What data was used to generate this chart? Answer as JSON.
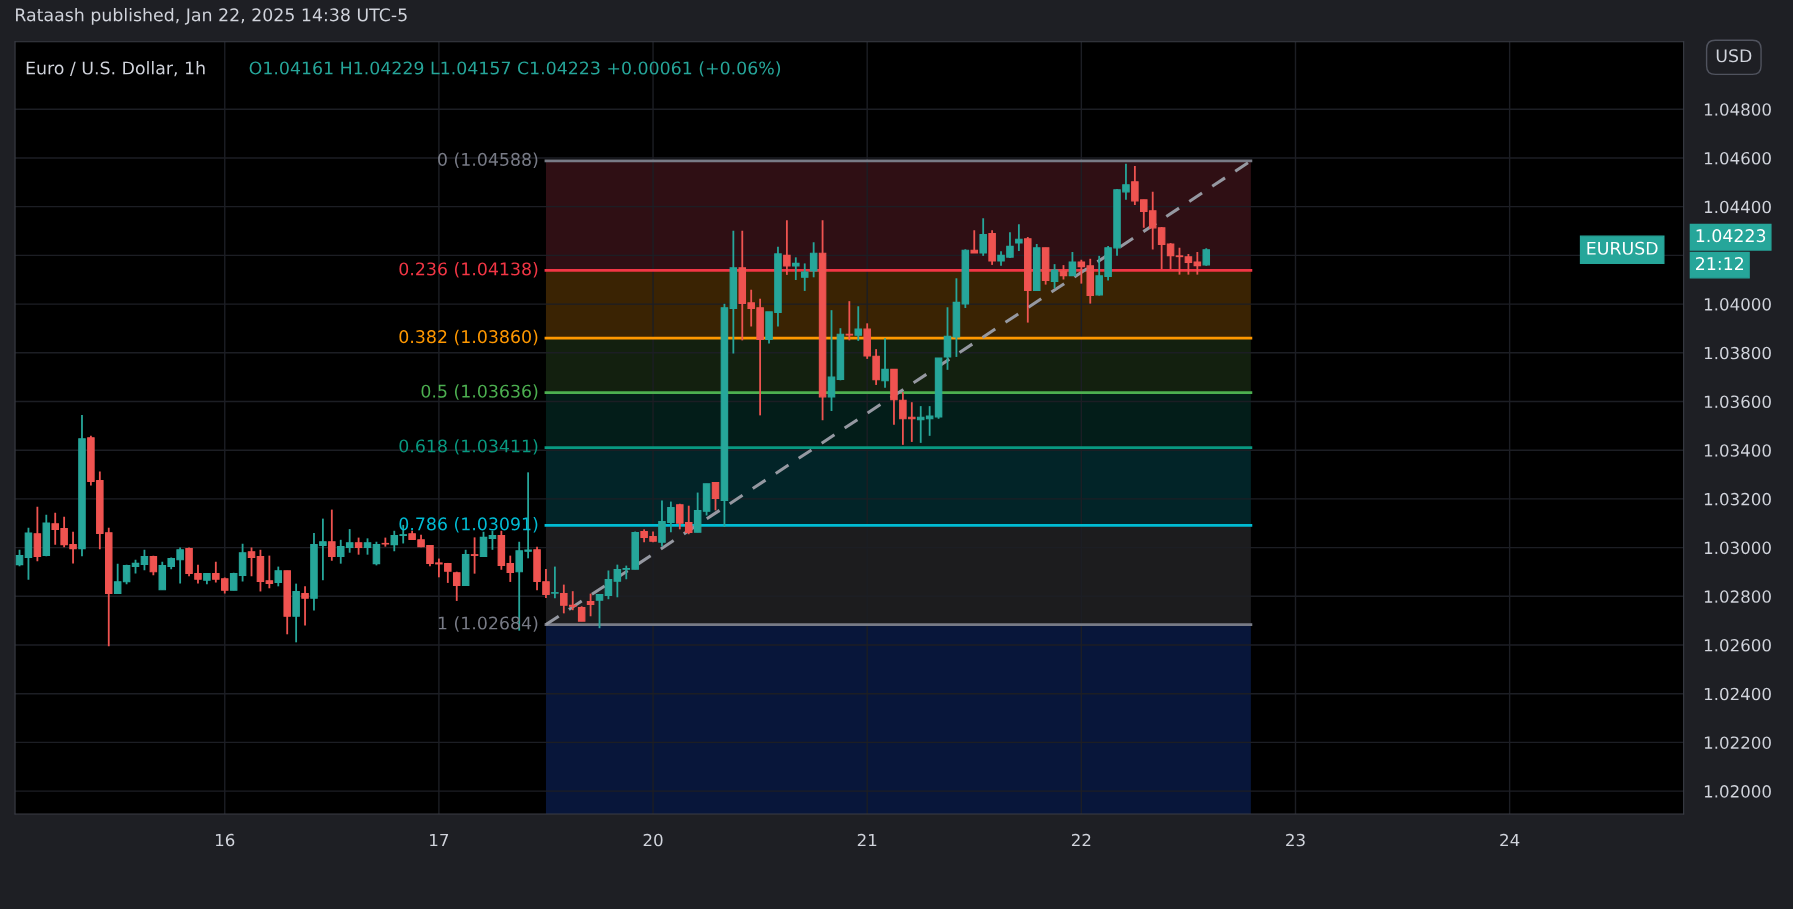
{
  "chart_data": {
    "type": "candlestick",
    "title": "Euro / U.S. Dollar, 1h",
    "subtitle": "O1.04161 H1.04229 L1.04157 C1.04223 +0.00061 (+0.06%)",
    "annotations": [
      "Rataash published, Jan 22, 2025 14:38 UTC-5",
      "USD",
      "EURUSD",
      "1.04223",
      "21:12"
    ],
    "categories": [
      null,
      null,
      null,
      null,
      null,
      null,
      null,
      null,
      null,
      null,
      null,
      null,
      null,
      null,
      null,
      null,
      null,
      null,
      null,
      null,
      null,
      null,
      null,
      "16",
      null,
      null,
      null,
      null,
      null,
      null,
      null,
      null,
      null,
      null,
      null,
      null,
      null,
      null,
      null,
      null,
      null,
      null,
      null,
      null,
      null,
      null,
      null,
      "17",
      null,
      null,
      null,
      null,
      null,
      null,
      null,
      null,
      null,
      null,
      null,
      null,
      null,
      null,
      null,
      null,
      null,
      null,
      null,
      null,
      null,
      null,
      null,
      "20",
      null,
      null,
      null,
      null,
      null,
      null,
      null,
      null,
      null,
      null,
      null,
      null,
      null,
      null,
      null,
      null,
      null,
      null,
      null,
      null,
      null,
      null,
      null,
      "21",
      null,
      null,
      null,
      null,
      null,
      null,
      null,
      null,
      null,
      null,
      null,
      null,
      null,
      null,
      null,
      null,
      null,
      null,
      null,
      null,
      null,
      null,
      null,
      "22",
      null,
      null,
      null,
      null,
      null,
      null,
      null,
      null,
      null,
      null,
      null,
      null,
      null,
      null,
      null,
      null,
      null,
      null,
      null,
      null,
      null,
      null,
      null,
      "23",
      null,
      null,
      null,
      null,
      null,
      null,
      null,
      null,
      null,
      null,
      null,
      null,
      null,
      null,
      null,
      null,
      null,
      null,
      null,
      null,
      null,
      null,
      null,
      "24",
      null,
      null,
      null,
      null,
      null,
      null,
      null,
      null,
      null,
      null,
      null,
      null,
      null,
      null,
      null,
      null,
      null,
      null,
      null
    ],
    "ohlc": [
      [
        1.0293,
        1.02991,
        1.02923,
        1.02967
      ],
      [
        1.0296,
        1.03082,
        1.02868,
        1.0306
      ],
      [
        1.03057,
        1.03168,
        1.02944,
        1.02964
      ],
      [
        1.02968,
        1.03135,
        1.02964,
        1.03101
      ],
      [
        1.03098,
        1.03143,
        1.03012,
        1.03075
      ],
      [
        1.03078,
        1.03127,
        1.03001,
        1.03012
      ],
      [
        1.03012,
        1.03065,
        1.02935,
        1.02996
      ],
      [
        1.02996,
        1.03545,
        1.02964,
        1.03447
      ],
      [
        1.03451,
        1.03459,
        1.03255,
        1.03272
      ],
      [
        1.03275,
        1.03312,
        1.02993,
        1.03058
      ],
      [
        1.03061,
        1.03082,
        1.02595,
        1.02812
      ],
      [
        1.02812,
        1.02934,
        1.02812,
        1.0286
      ],
      [
        1.0286,
        1.0293,
        1.02849,
        1.02926
      ],
      [
        1.02923,
        1.0295,
        1.02894,
        1.02935
      ],
      [
        1.02931,
        1.02991,
        1.02907,
        1.02963
      ],
      [
        1.02963,
        1.02967,
        1.02886,
        1.02901
      ],
      [
        1.02827,
        1.02942,
        1.02827,
        1.02926
      ],
      [
        1.02923,
        1.02959,
        1.02911,
        1.02955
      ],
      [
        1.0295,
        1.03,
        1.02853,
        1.02991
      ],
      [
        1.02996,
        1.03,
        1.02882,
        1.02894
      ],
      [
        1.02893,
        1.0293,
        1.02853,
        1.0287
      ],
      [
        1.02866,
        1.02893,
        1.02849,
        1.02893
      ],
      [
        1.02893,
        1.02942,
        1.02857,
        1.0287
      ],
      [
        1.02872,
        1.02877,
        1.02812,
        1.02825
      ],
      [
        1.02825,
        1.02897,
        1.02825,
        1.02893
      ],
      [
        1.02886,
        1.03016,
        1.02861,
        1.02979
      ],
      [
        1.02983,
        1.03,
        1.02882,
        1.0296
      ],
      [
        1.02963,
        1.02991,
        1.0282,
        1.02861
      ],
      [
        1.02864,
        1.02967,
        1.02833,
        1.02853
      ],
      [
        1.02857,
        1.02922,
        1.02841,
        1.02905
      ],
      [
        1.02905,
        1.02905,
        1.02644,
        1.02718
      ],
      [
        1.02718,
        1.02852,
        1.02611,
        1.02819
      ],
      [
        1.02811,
        1.02841,
        1.0268,
        1.02792
      ],
      [
        1.02792,
        1.0306,
        1.02742,
        1.03012
      ],
      [
        1.03009,
        1.03119,
        1.02866,
        1.03024
      ],
      [
        1.03024,
        1.03156,
        1.02946,
        1.02964
      ],
      [
        1.02964,
        1.03032,
        1.02934,
        1.03004
      ],
      [
        1.03001,
        1.03076,
        1.02979,
        1.0302
      ],
      [
        1.0302,
        1.03041,
        1.02971,
        1.03001
      ],
      [
        1.03001,
        1.03038,
        1.02971,
        1.0302
      ],
      [
        1.02934,
        1.03024,
        1.02927,
        1.03012
      ],
      [
        1.03017,
        1.03041,
        1.03004,
        1.03015
      ],
      [
        1.03012,
        1.03069,
        1.02985,
        1.03049
      ],
      [
        1.0305,
        1.03093,
        1.03017,
        1.03053
      ],
      [
        1.03057,
        1.03069,
        1.03034,
        1.03034
      ],
      [
        1.03032,
        1.03053,
        1.03001,
        1.03004
      ],
      [
        1.03008,
        1.03011,
        1.02923,
        1.02935
      ],
      [
        1.02937,
        1.02955,
        1.02878,
        1.02933
      ],
      [
        1.02934,
        1.02937,
        1.02855,
        1.02903
      ],
      [
        1.02897,
        1.02901,
        1.02781,
        1.02845
      ],
      [
        1.02845,
        1.02991,
        1.02845,
        1.02971
      ],
      [
        1.02971,
        1.03042,
        1.02893,
        1.02968
      ],
      [
        1.02964,
        1.03065,
        1.02964,
        1.03042
      ],
      [
        1.03038,
        1.03069,
        1.02991,
        1.03049
      ],
      [
        1.03049,
        1.03069,
        1.02909,
        1.02927
      ],
      [
        1.02934,
        1.02967,
        1.02859,
        1.02898
      ],
      [
        1.02901,
        1.03024,
        1.02659,
        1.02987
      ],
      [
        1.02985,
        1.03309,
        1.02956,
        1.0299
      ],
      [
        1.02991,
        1.03004,
        1.02825,
        1.02861
      ],
      [
        1.0286,
        1.02912,
        1.02793,
        1.02808
      ],
      [
        1.02813,
        1.02922,
        1.02792,
        1.02815
      ],
      [
        1.02811,
        1.02848,
        1.0273,
        1.02763
      ],
      [
        1.02763,
        1.02821,
        1.02743,
        1.02759
      ],
      [
        1.02754,
        1.02759,
        1.02698,
        1.02698
      ],
      [
        1.02778,
        1.02811,
        1.02718,
        1.02767
      ],
      [
        1.02784,
        1.02807,
        1.02669,
        1.02807
      ],
      [
        1.02804,
        1.02906,
        1.02788,
        1.02869
      ],
      [
        1.02862,
        1.0293,
        1.02796,
        1.0291
      ],
      [
        1.02911,
        1.02926,
        1.0287,
        1.02914
      ],
      [
        1.02911,
        1.03066,
        1.02911,
        1.03062
      ],
      [
        1.03066,
        1.03075,
        1.03022,
        1.03042
      ],
      [
        1.03045,
        1.03066,
        1.03022,
        1.03026
      ],
      [
        1.03022,
        1.03193,
        1.03005,
        1.03107
      ],
      [
        1.03103,
        1.03189,
        1.03063,
        1.03164
      ],
      [
        1.03176,
        1.0318,
        1.03075,
        1.031
      ],
      [
        1.03103,
        1.03172,
        1.03055,
        1.03062
      ],
      [
        1.03063,
        1.03226,
        1.03063,
        1.03152
      ],
      [
        1.03149,
        1.03262,
        1.03132,
        1.03262
      ],
      [
        1.03267,
        1.03267,
        1.03153,
        1.03202
      ],
      [
        1.03194,
        1.04001,
        1.03085,
        1.03985
      ],
      [
        1.03982,
        1.04301,
        1.03797,
        1.04149
      ],
      [
        1.04149,
        1.04301,
        1.03851,
        1.04003
      ],
      [
        1.04005,
        1.04059,
        1.03908,
        1.03982
      ],
      [
        1.03985,
        1.04022,
        1.03543,
        1.03855
      ],
      [
        1.03855,
        1.03968,
        1.03838,
        1.03968
      ],
      [
        1.03966,
        1.04235,
        1.03908,
        1.04206
      ],
      [
        1.042,
        1.04344,
        1.0412,
        1.04157
      ],
      [
        1.04157,
        1.04192,
        1.04099,
        1.04167
      ],
      [
        1.0411,
        1.04167,
        1.04054,
        1.04132
      ],
      [
        1.04136,
        1.04254,
        1.0411,
        1.04209
      ],
      [
        1.04209,
        1.04344,
        1.03523,
        1.03619
      ],
      [
        1.03619,
        1.03975,
        1.03561,
        1.037
      ],
      [
        1.03691,
        1.03901,
        1.03687,
        1.03876
      ],
      [
        1.03876,
        1.04012,
        1.03851,
        1.03873
      ],
      [
        1.03872,
        1.03991,
        1.03849,
        1.03897
      ],
      [
        1.03897,
        1.03921,
        1.03775,
        1.03787
      ],
      [
        1.03786,
        1.03815,
        1.03668,
        1.03689
      ],
      [
        1.03685,
        1.0386,
        1.03656,
        1.03732
      ],
      [
        1.03732,
        1.03732,
        1.03504,
        1.03607
      ],
      [
        1.03605,
        1.03638,
        1.03422,
        1.03529
      ],
      [
        1.03535,
        1.03597,
        1.03434,
        1.03529
      ],
      [
        1.03525,
        1.03581,
        1.0343,
        1.03535
      ],
      [
        1.03529,
        1.03581,
        1.03459,
        1.0354
      ],
      [
        1.03537,
        1.03778,
        1.03529,
        1.03778
      ],
      [
        1.03783,
        1.03987,
        1.0373,
        1.03868
      ],
      [
        1.03865,
        1.04106,
        1.03783,
        1.04007
      ],
      [
        1.04001,
        1.04225,
        1.03984,
        1.04221
      ],
      [
        1.04221,
        1.04303,
        1.0421,
        1.0421
      ],
      [
        1.0421,
        1.04352,
        1.04198,
        1.04286
      ],
      [
        1.0429,
        1.04303,
        1.04161,
        1.04177
      ],
      [
        1.04177,
        1.04217,
        1.04157,
        1.042
      ],
      [
        1.04193,
        1.04295,
        1.04189,
        1.04237
      ],
      [
        1.04251,
        1.04328,
        1.04218,
        1.04266
      ],
      [
        1.04268,
        1.04275,
        1.03924,
        1.04056
      ],
      [
        1.04056,
        1.04247,
        1.04056,
        1.04231
      ],
      [
        1.04231,
        1.04231,
        1.0408,
        1.04097
      ],
      [
        1.04093,
        1.04164,
        1.04064,
        1.0414
      ],
      [
        1.04136,
        1.0416,
        1.04101,
        1.04117
      ],
      [
        1.04117,
        1.04214,
        1.04117,
        1.04173
      ],
      [
        1.04173,
        1.04182,
        1.04084,
        1.04154
      ],
      [
        1.04157,
        1.04186,
        1.04002,
        1.04035
      ],
      [
        1.04038,
        1.04198,
        1.04035,
        1.04116
      ],
      [
        1.04113,
        1.04239,
        1.04097,
        1.04231
      ],
      [
        1.04231,
        1.04473,
        1.04198,
        1.04469
      ],
      [
        1.04461,
        1.04576,
        1.04428,
        1.0449
      ],
      [
        1.04502,
        1.04567,
        1.04407,
        1.04424
      ],
      [
        1.04428,
        1.04428,
        1.04313,
        1.0438
      ],
      [
        1.04383,
        1.04461,
        1.04224,
        1.04313
      ],
      [
        1.04313,
        1.04317,
        1.04143,
        1.04245
      ],
      [
        1.04247,
        1.04251,
        1.04143,
        1.04199
      ],
      [
        1.04198,
        1.04231,
        1.04121,
        1.04195
      ],
      [
        1.04194,
        1.04206,
        1.04121,
        1.04171
      ],
      [
        1.04173,
        1.04214,
        1.04121,
        1.04158
      ],
      [
        1.04161,
        1.04229,
        1.04157,
        1.04223
      ],
      null,
      null,
      null,
      null,
      null,
      null,
      null,
      null,
      null,
      null,
      null,
      null,
      null,
      null,
      null,
      null,
      null,
      null,
      null,
      null,
      null,
      null,
      null,
      null,
      null,
      null,
      null,
      null,
      null,
      null,
      null,
      null,
      null,
      null,
      null,
      null,
      null,
      null,
      null,
      null,
      null,
      null,
      null,
      null,
      null,
      null,
      null,
      null,
      null,
      null,
      null,
      null,
      null
    ],
    "colors": [
      "#26a69a",
      "#26a69a",
      "#ef5350",
      "#26a69a",
      "#ef5350",
      "#ef5350",
      "#ef5350",
      "#26a69a",
      "#ef5350",
      "#ef5350",
      "#ef5350",
      "#26a69a",
      "#26a69a",
      "#26a69a",
      "#26a69a",
      "#ef5350",
      "#26a69a",
      "#26a69a",
      "#26a69a",
      "#ef5350",
      "#ef5350",
      "#26a69a",
      "#ef5350",
      "#ef5350",
      "#26a69a",
      "#26a69a",
      "#ef5350",
      "#ef5350",
      "#ef5350",
      "#26a69a",
      "#ef5350",
      "#26a69a",
      "#ef5350",
      "#26a69a",
      "#26a69a",
      "#ef5350",
      "#26a69a",
      "#26a69a",
      "#ef5350",
      "#26a69a",
      "#26a69a",
      "#ef5350",
      "#26a69a",
      "#26a69a",
      "#ef5350",
      "#ef5350",
      "#ef5350",
      "#ef5350",
      "#ef5350",
      "#ef5350",
      "#26a69a",
      "#ef5350",
      "#26a69a",
      "#26a69a",
      "#ef5350",
      "#ef5350",
      "#26a69a",
      "#26a69a",
      "#ef5350",
      "#ef5350",
      "#26a69a",
      "#ef5350",
      "#ef5350",
      "#ef5350",
      "#ef5350",
      "#26a69a",
      "#26a69a",
      "#26a69a",
      "#26a69a",
      "#26a69a",
      "#ef5350",
      "#ef5350",
      "#26a69a",
      "#26a69a",
      "#ef5350",
      "#ef5350",
      "#26a69a",
      "#26a69a",
      "#ef5350",
      "#26a69a",
      "#26a69a",
      "#ef5350",
      "#ef5350",
      "#ef5350",
      "#26a69a",
      "#26a69a",
      "#ef5350",
      "#26a69a",
      "#26a69a",
      "#26a69a",
      "#ef5350",
      "#26a69a",
      "#26a69a",
      "#ef5350",
      "#26a69a",
      "#ef5350",
      "#ef5350",
      "#26a69a",
      "#ef5350",
      "#ef5350",
      "#ef5350",
      "#26a69a",
      "#26a69a",
      "#26a69a",
      "#26a69a",
      "#26a69a",
      "#26a69a",
      "#ef5350",
      "#26a69a",
      "#ef5350",
      "#26a69a",
      "#26a69a",
      "#26a69a",
      "#ef5350",
      "#26a69a",
      "#ef5350",
      "#26a69a",
      "#ef5350",
      "#26a69a",
      "#ef5350",
      "#ef5350",
      "#26a69a",
      "#26a69a",
      "#26a69a",
      "#26a69a",
      "#ef5350",
      "#ef5350",
      "#ef5350",
      "#ef5350",
      "#ef5350",
      "#ef5350",
      "#ef5350",
      "#ef5350",
      "#26a69a",
      null,
      null,
      null,
      null,
      null,
      null,
      null,
      null,
      null,
      null,
      null,
      null,
      null,
      null,
      null,
      null,
      null,
      null,
      null,
      null,
      null,
      null,
      null,
      null,
      null,
      null,
      null,
      null,
      null,
      null,
      null,
      null,
      null,
      null,
      null,
      null,
      null,
      null,
      null,
      null,
      null,
      null,
      null,
      null,
      null,
      null,
      null,
      null,
      null,
      null,
      null,
      null,
      null
    ],
    "series": [
      {
        "type": "line",
        "color": "#9598a1",
        "values": [
          null,
          null,
          null,
          null,
          null,
          null,
          null,
          null,
          null,
          null,
          null,
          null,
          null,
          null,
          null,
          null,
          null,
          null,
          null,
          null,
          null,
          null,
          null,
          null,
          null,
          null,
          null,
          null,
          null,
          null,
          null,
          null,
          null,
          null,
          null,
          null,
          null,
          null,
          null,
          null,
          null,
          null,
          null,
          null,
          null,
          null,
          null,
          null,
          null,
          null,
          null,
          null,
          null,
          null,
          null,
          null,
          null,
          null,
          null,
          1.02684,
          null,
          null,
          null,
          null,
          null,
          null,
          null,
          null,
          null,
          null,
          null,
          null,
          null,
          null,
          null,
          null,
          null,
          null,
          null,
          null,
          null,
          null,
          null,
          null,
          null,
          null,
          null,
          null,
          null,
          null,
          null,
          null,
          null,
          null,
          null,
          null,
          null,
          null,
          null,
          null,
          null,
          null,
          null,
          null,
          null,
          null,
          null,
          null,
          null,
          null,
          null,
          null,
          null,
          null,
          null,
          null,
          null,
          null,
          null,
          null,
          null,
          null,
          null,
          null,
          null,
          null,
          null,
          null,
          null,
          null,
          null,
          null,
          null,
          null,
          null,
          null,
          null,
          null,
          1.04588,
          null,
          null,
          null,
          null,
          null,
          null,
          null,
          null,
          null,
          null,
          null,
          null,
          null,
          null,
          null,
          null,
          null,
          null,
          null,
          null,
          null,
          null,
          null,
          null,
          null,
          null,
          null,
          null,
          null,
          null,
          null,
          null,
          null,
          null,
          null,
          null,
          null,
          null,
          null,
          null,
          null,
          null,
          null,
          null,
          null,
          null,
          null,
          null
        ]
      }
    ],
    "line_style": "dashed",
    "ref_lines": [
      {
        "axis": "y",
        "value": 1.04588,
        "label": "0 (1.04588)",
        "color": "#787b86"
      },
      {
        "axis": "y",
        "value": 1.04138,
        "label": "0.236 (1.04138)",
        "color": "#f23645"
      },
      {
        "axis": "y",
        "value": 1.0386,
        "label": "0.382 (1.03860)",
        "color": "#ff9800"
      },
      {
        "axis": "y",
        "value": 1.03636,
        "label": "0.5 (1.03636)",
        "color": "#4caf50"
      },
      {
        "axis": "y",
        "value": 1.03411,
        "label": "0.618 (1.03411)",
        "color": "#089981"
      },
      {
        "axis": "y",
        "value": 1.03091,
        "label": "0.786 (1.03091)",
        "color": "#00bcd4"
      },
      {
        "axis": "y",
        "value": 1.02684,
        "label": "1 (1.02684)",
        "color": "#787b86"
      }
    ],
    "bands": [
      {
        "axis": "y",
        "from": 1.04138,
        "to": 1.04588,
        "color": "#2f0f14"
      },
      {
        "axis": "y",
        "from": 1.0386,
        "to": 1.04138,
        "color": "#3a2303"
      },
      {
        "axis": "y",
        "from": 1.03636,
        "to": 1.0386,
        "color": "#13200f"
      },
      {
        "axis": "y",
        "from": 1.03411,
        "to": 1.03636,
        "color": "#031d19"
      },
      {
        "axis": "y",
        "from": 1.03091,
        "to": 1.03411,
        "color": "#022428"
      },
      {
        "axis": "y",
        "from": 1.02684,
        "to": 1.03091,
        "color": "#1c1c1e"
      },
      {
        "axis": "y",
        "from": 1.01906,
        "to": 1.02684,
        "color": "#08163a"
      }
    ],
    "ylim": [
      1.01906,
      1.05077
    ],
    "yticks": [
      {
        "value": 1.02,
        "label": "1.02000"
      },
      {
        "value": 1.022,
        "label": "1.02200"
      },
      {
        "value": 1.024,
        "label": "1.02400"
      },
      {
        "value": 1.026,
        "label": "1.02600"
      },
      {
        "value": 1.028,
        "label": "1.02800"
      },
      {
        "value": 1.03,
        "label": "1.03000"
      },
      {
        "value": 1.032,
        "label": "1.03200"
      },
      {
        "value": 1.034,
        "label": "1.03400"
      },
      {
        "value": 1.036,
        "label": "1.03600"
      },
      {
        "value": 1.038,
        "label": "1.03800"
      },
      {
        "value": 1.04,
        "label": "1.04000"
      },
      {
        "value": 1.042,
        "label": null
      },
      {
        "value": 1.044,
        "label": "1.04400"
      },
      {
        "value": 1.046,
        "label": "1.04600"
      },
      {
        "value": 1.048,
        "label": "1.04800"
      }
    ],
    "grid": true
  }
}
